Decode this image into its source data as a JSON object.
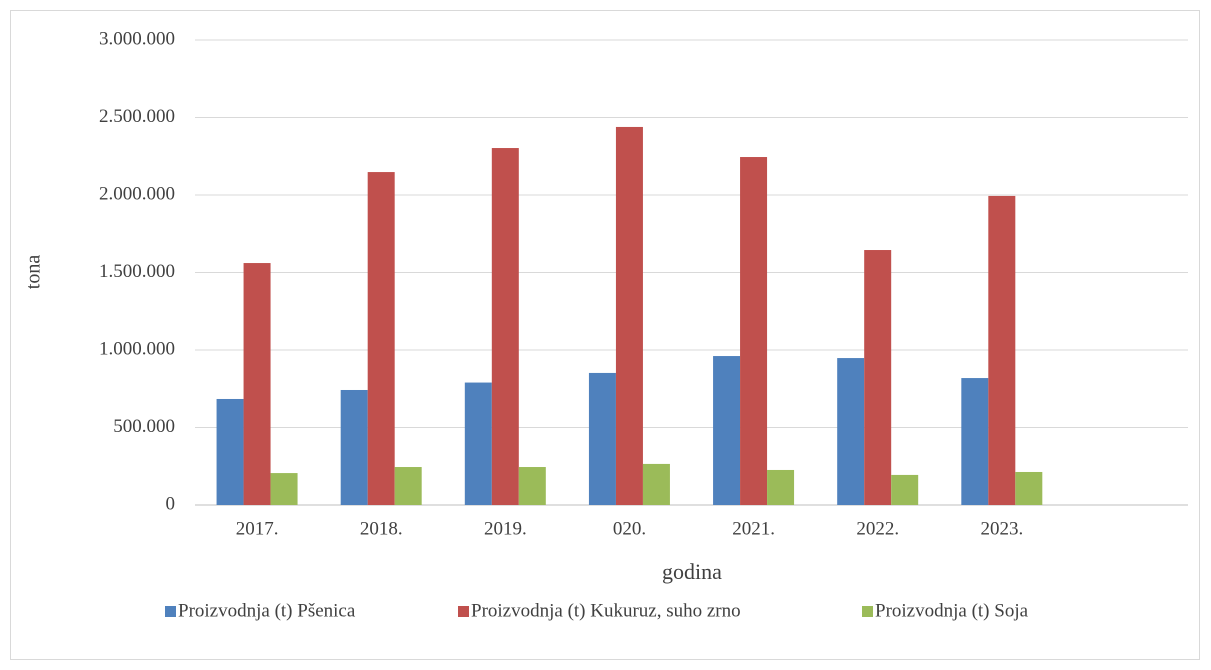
{
  "chart_data": {
    "type": "bar",
    "categories": [
      "2017.",
      "2018.",
      "2019.",
      "020.",
      "2021.",
      "2022.",
      "2023.",
      null
    ],
    "series": [
      {
        "name": "Proizvodnja (t) Pšenica",
        "color": "#4f81bd",
        "values": [
          684000,
          742000,
          790000,
          852000,
          961000,
          948000,
          819000,
          null
        ]
      },
      {
        "name": "Proizvodnja (t) Kukuruz, suho zrno",
        "color": "#c0504d",
        "values": [
          1561000,
          2148000,
          2303000,
          2439000,
          2245000,
          1645000,
          1994000,
          null
        ]
      },
      {
        "name": "Proizvodnja (t) Soja",
        "color": "#9bbb59",
        "values": [
          206000,
          245000,
          245000,
          265000,
          226000,
          194000,
          213000,
          null
        ]
      }
    ],
    "xlabel": "godina",
    "ylabel": "tona",
    "ylim": [
      0,
      3000000
    ],
    "yticks": [
      0,
      {
        "value": 500000,
        "label": "500.000"
      },
      {
        "value": 1000000,
        "label": "1.000.000"
      },
      {
        "value": 1500000,
        "label": "1.500.000"
      },
      {
        "value": 2000000,
        "label": "2.000.000"
      },
      {
        "value": 2500000,
        "label": "2.500.000"
      },
      {
        "value": 3000000,
        "label": "3.000.000"
      }
    ],
    "grid": true,
    "legend": "bottom"
  }
}
